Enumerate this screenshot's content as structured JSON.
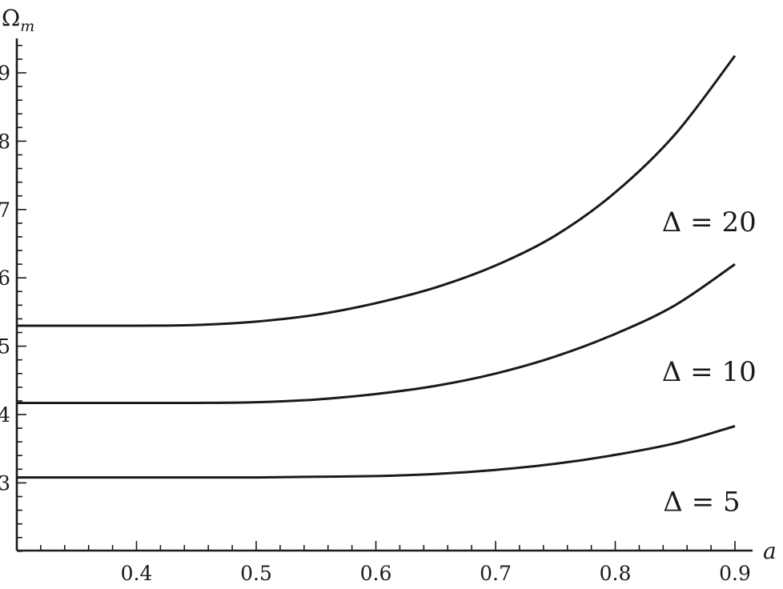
{
  "chart_data": {
    "type": "line",
    "title": "",
    "xlabel": "a",
    "ylabel_main": "Ω",
    "ylabel_sub": "m",
    "xlim": [
      0.3,
      0.915
    ],
    "ylim": [
      2.0,
      9.5
    ],
    "x_ticks": [
      0.4,
      0.5,
      0.6,
      0.7,
      0.8,
      0.9
    ],
    "x_tick_labels": [
      "0.4",
      "0.5",
      "0.6",
      "0.7",
      "0.8",
      "0.9"
    ],
    "y_ticks": [
      3,
      4,
      5,
      6,
      7,
      8,
      9
    ],
    "y_tick_labels": [
      "3",
      "4",
      "5",
      "6",
      "7",
      "8",
      "9"
    ],
    "grid": false,
    "x": [
      0.3,
      0.35,
      0.4,
      0.45,
      0.5,
      0.55,
      0.6,
      0.65,
      0.7,
      0.75,
      0.8,
      0.85,
      0.9
    ],
    "series": [
      {
        "name": "Δ = 20",
        "values": [
          5.3,
          5.3,
          5.3,
          5.31,
          5.36,
          5.46,
          5.63,
          5.86,
          6.18,
          6.62,
          7.25,
          8.1,
          9.25
        ]
      },
      {
        "name": "Δ = 10",
        "values": [
          4.17,
          4.17,
          4.17,
          4.17,
          4.18,
          4.22,
          4.3,
          4.42,
          4.6,
          4.85,
          5.18,
          5.6,
          6.2
        ]
      },
      {
        "name": "Δ = 5",
        "values": [
          3.08,
          3.08,
          3.08,
          3.08,
          3.08,
          3.09,
          3.1,
          3.13,
          3.19,
          3.28,
          3.41,
          3.58,
          3.83
        ]
      }
    ],
    "annotations": [
      {
        "text": "Δ = 20",
        "x": 0.839,
        "y": 6.82
      },
      {
        "text": "Δ = 10",
        "x": 0.839,
        "y": 4.63
      },
      {
        "text": "Δ = 5",
        "x": 0.84,
        "y": 2.73
      }
    ]
  }
}
